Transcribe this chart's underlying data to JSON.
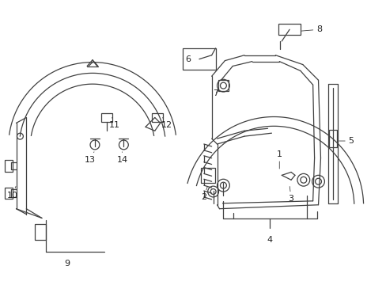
{
  "bg_color": "#ffffff",
  "line_color": "#404040",
  "text_color": "#222222",
  "fig_width": 4.89,
  "fig_height": 3.6,
  "dpi": 100
}
